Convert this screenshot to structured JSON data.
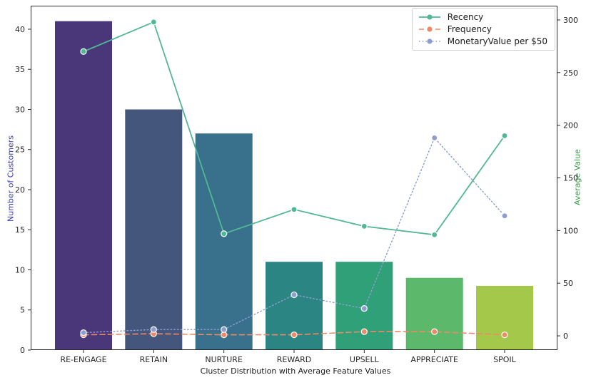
{
  "chart_data": {
    "type": "bar+line",
    "description": "Bar chart of customer counts per cluster with three overlaid average-feature line series on a secondary axis",
    "categories": [
      "RE-ENGAGE",
      "RETAIN",
      "NURTURE",
      "REWARD",
      "UPSELL",
      "APPRECIATE",
      "SPOIL"
    ],
    "xlabel": "Cluster Distribution with Average Feature Values",
    "bar_series": {
      "name": "Number of Customers",
      "axis": "left",
      "values": [
        41,
        30,
        27,
        11,
        11,
        9,
        8
      ],
      "colors": [
        "#4a3779",
        "#45567d",
        "#39718c",
        "#2b8683",
        "#2fa077",
        "#5cb96b",
        "#a4c94a"
      ]
    },
    "line_series": [
      {
        "name": "Recency",
        "axis": "right",
        "style": "solid",
        "color": "#52b795",
        "values": [
          270,
          298,
          97,
          120,
          104,
          96,
          190
        ]
      },
      {
        "name": "Frequency",
        "axis": "right",
        "style": "dashed",
        "color": "#ec8a67",
        "values": [
          1,
          2,
          1,
          1,
          4,
          4,
          1
        ]
      },
      {
        "name": "MonetaryValue per $50",
        "axis": "right",
        "style": "dotted",
        "color": "#8e9dcf",
        "values": [
          3,
          6,
          6,
          39,
          26,
          188,
          114
        ]
      }
    ],
    "left_axis": {
      "label": "Number of Customers",
      "color": "#3b3bc4",
      "ticks": [
        0,
        5,
        10,
        15,
        20,
        25,
        30,
        35,
        40
      ],
      "range": [
        0,
        42.93
      ]
    },
    "right_axis": {
      "label": "Average Value",
      "color": "#2e9e40",
      "ticks": [
        0,
        50,
        100,
        150,
        200,
        250,
        300
      ],
      "range": [
        -13.5,
        313.5
      ]
    },
    "legend": {
      "position": "upper right",
      "entries": [
        "Recency",
        "Frequency",
        "MonetaryValue per $50"
      ]
    },
    "grid": false,
    "tick_color": "#262626"
  }
}
